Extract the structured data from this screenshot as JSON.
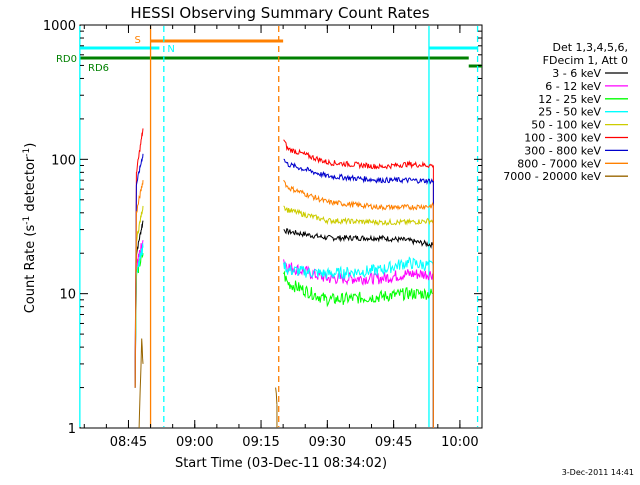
{
  "chart_data": {
    "type": "line",
    "title": "HESSI Observing Summary Count Rates",
    "xlabel": "Start Time (03-Dec-11 08:34:02)",
    "ylabel_main": "Count Rate (s",
    "ylabel_sup1": "-1",
    "ylabel_mid": " detector",
    "ylabel_sup2": "-1",
    "ylabel_end": ")",
    "ylim": [
      1,
      1000
    ],
    "yscale": "log",
    "xlim": [
      "08:34:02",
      "10:05:00"
    ],
    "x_ticks": [
      "08:45",
      "09:00",
      "09:15",
      "09:30",
      "09:45",
      "10:00"
    ],
    "y_ticks": [
      "1",
      "10",
      "100",
      "1000"
    ],
    "legend": {
      "header1": "Det 1,3,4,5,6,",
      "header2": "FDecim 1, Att 0",
      "placement": "right"
    },
    "series": [
      {
        "name": "3 - 6 keV",
        "color": "#000000",
        "segment1": [
          [
            8.775,
            2
          ],
          [
            8.78,
            20
          ],
          [
            8.805,
            35
          ]
        ],
        "segment2": [
          [
            9.335,
            30
          ],
          [
            9.35,
            29
          ],
          [
            9.5,
            26
          ],
          [
            9.7,
            26
          ],
          [
            9.8,
            25
          ],
          [
            9.9,
            23
          ]
        ]
      },
      {
        "name": "6 - 12 keV",
        "color": "#ff00ff",
        "segment1": [
          [
            8.775,
            2
          ],
          [
            8.78,
            16
          ],
          [
            8.805,
            25
          ]
        ],
        "segment2": [
          [
            9.335,
            18
          ],
          [
            9.35,
            16
          ],
          [
            9.5,
            13
          ],
          [
            9.7,
            13
          ],
          [
            9.8,
            14
          ],
          [
            9.9,
            14
          ]
        ]
      },
      {
        "name": "12 - 25 keV",
        "color": "#00ff00",
        "segment1": [
          [
            8.775,
            2
          ],
          [
            8.78,
            14
          ],
          [
            8.805,
            20
          ]
        ],
        "segment2": [
          [
            9.335,
            14
          ],
          [
            9.35,
            12
          ],
          [
            9.5,
            9
          ],
          [
            9.7,
            9.5
          ],
          [
            9.8,
            10
          ],
          [
            9.9,
            10
          ]
        ]
      },
      {
        "name": "25 - 50 keV",
        "color": "#00ffff",
        "segment1": [
          [
            8.775,
            2
          ],
          [
            8.78,
            15
          ],
          [
            8.805,
            22
          ]
        ],
        "segment2": [
          [
            9.335,
            17
          ],
          [
            9.35,
            15
          ],
          [
            9.5,
            14
          ],
          [
            9.7,
            15
          ],
          [
            9.8,
            17
          ],
          [
            9.9,
            16
          ]
        ]
      },
      {
        "name": "50 - 100 keV",
        "color": "#cccc00",
        "segment1": [
          [
            8.775,
            2
          ],
          [
            8.78,
            25
          ],
          [
            8.805,
            45
          ]
        ],
        "segment2": [
          [
            9.335,
            45
          ],
          [
            9.35,
            42
          ],
          [
            9.5,
            35
          ],
          [
            9.7,
            34
          ],
          [
            9.8,
            34
          ],
          [
            9.9,
            35
          ]
        ]
      },
      {
        "name": "100 - 300 keV",
        "color": "#ff0000",
        "segment1": [
          [
            8.775,
            2
          ],
          [
            8.78,
            80
          ],
          [
            8.805,
            170
          ]
        ],
        "segment2": [
          [
            9.335,
            140
          ],
          [
            9.35,
            120
          ],
          [
            9.5,
            95
          ],
          [
            9.7,
            88
          ],
          [
            9.8,
            92
          ],
          [
            9.9,
            90
          ]
        ]
      },
      {
        "name": "300 - 800 keV",
        "color": "#0000cc",
        "segment1": [
          [
            8.775,
            2
          ],
          [
            8.78,
            65
          ],
          [
            8.805,
            110
          ]
        ],
        "segment2": [
          [
            9.335,
            100
          ],
          [
            9.35,
            92
          ],
          [
            9.5,
            75
          ],
          [
            9.7,
            70
          ],
          [
            9.8,
            70
          ],
          [
            9.9,
            69
          ]
        ]
      },
      {
        "name": "800 - 7000 keV",
        "color": "#ff8000",
        "segment1": [
          [
            8.775,
            2
          ],
          [
            8.78,
            40
          ],
          [
            8.805,
            70
          ]
        ],
        "segment2": [
          [
            9.335,
            70
          ],
          [
            9.35,
            62
          ],
          [
            9.5,
            48
          ],
          [
            9.7,
            44
          ],
          [
            9.8,
            44
          ],
          [
            9.9,
            45
          ]
        ]
      },
      {
        "name": "7000 - 20000 keV",
        "color": "#996600",
        "segment1": [
          [
            8.79,
            1
          ],
          [
            8.8,
            4.5
          ],
          [
            8.805,
            3
          ]
        ],
        "segment2": [
          [
            9.305,
            2
          ],
          [
            9.31,
            1.5
          ]
        ]
      }
    ],
    "flags": [
      {
        "label": "S",
        "color": "#ff8000",
        "start": "08:50",
        "end": "09:20"
      },
      {
        "label": "N",
        "color": "#00ffff",
        "start": "08:34",
        "end": "08:52"
      },
      {
        "label": "N",
        "color": "#00ffff",
        "start": "09:53",
        "end": "10:04",
        "show_label": false
      },
      {
        "label": "RD0",
        "color": "#008000",
        "start": "08:34",
        "end": "10:02"
      },
      {
        "label": "RD6",
        "color": "#008000",
        "start": "10:02",
        "end": "10:05"
      }
    ],
    "vlines": [
      {
        "time": "08:34",
        "color": "#00ffff",
        "style": "solid"
      },
      {
        "time": "08:50",
        "color": "#ff8000",
        "style": "solid"
      },
      {
        "time": "08:53",
        "color": "#00ffff",
        "style": "dashed"
      },
      {
        "time": "09:19",
        "color": "#ff8000",
        "style": "dashed"
      },
      {
        "time": "09:53",
        "color": "#00ffff",
        "style": "solid"
      },
      {
        "time": "10:04",
        "color": "#00ffff",
        "style": "dashed"
      }
    ]
  },
  "footer_date": "3-Dec-2011 14:41"
}
